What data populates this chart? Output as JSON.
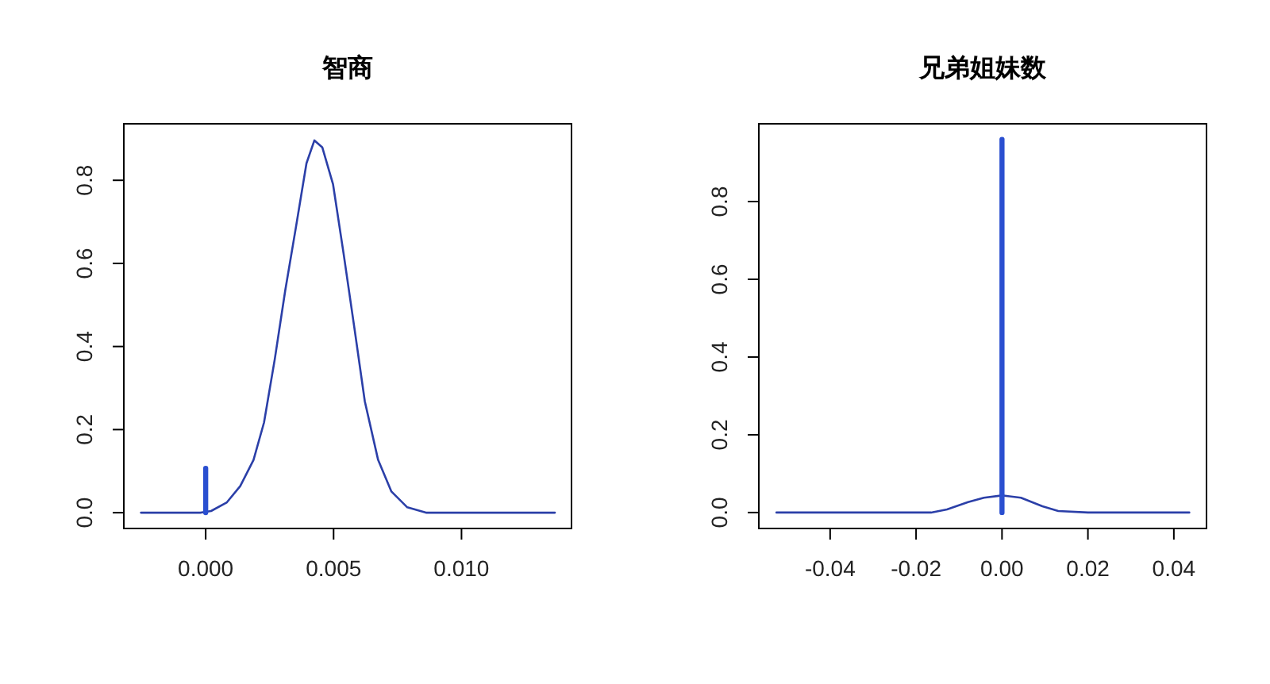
{
  "chart_data": [
    {
      "type": "line",
      "title": "智商",
      "xlim": [
        -0.0032,
        0.0143
      ],
      "ylim": [
        -0.038,
        0.936
      ],
      "xticks": [
        {
          "value": 0,
          "label": "0.000"
        },
        {
          "value": 0.005,
          "label": "0.005"
        },
        {
          "value": 0.01,
          "label": "0.010"
        }
      ],
      "yticks": [
        {
          "value": 0,
          "label": "0.0"
        },
        {
          "value": 0.2,
          "label": "0.2"
        },
        {
          "value": 0.4,
          "label": "0.4"
        },
        {
          "value": 0.6,
          "label": "0.6"
        },
        {
          "value": 0.8,
          "label": "0.8"
        }
      ],
      "grid": false,
      "series": [
        {
          "color": "#2b3fa8",
          "x": [
            -0.00253,
            -0.00021,
            0.00021,
            0.00083,
            0.00135,
            0.00187,
            0.00228,
            0.0027,
            0.00311,
            0.00353,
            0.00394,
            0.00425,
            0.00456,
            0.00498,
            0.00539,
            0.00581,
            0.00622,
            0.00674,
            0.00726,
            0.00788,
            0.00861,
            0.01365
          ],
          "values": [
            0,
            0,
            0.004,
            0.025,
            0.064,
            0.127,
            0.217,
            0.369,
            0.535,
            0.688,
            0.841,
            0.896,
            0.879,
            0.79,
            0.624,
            0.446,
            0.268,
            0.127,
            0.051,
            0.013,
            0,
            0
          ]
        },
        {
          "color": "#2a4fd0",
          "x": [
            0,
            0
          ],
          "values": [
            0,
            0.107
          ]
        }
      ]
    },
    {
      "type": "line",
      "title": "兄弟姐妹数",
      "xlim": [
        -0.0566,
        0.0476
      ],
      "ylim": [
        -0.041,
        1.0
      ],
      "xticks": [
        {
          "value": -0.04,
          "label": "-0.04"
        },
        {
          "value": -0.02,
          "label": "-0.02"
        },
        {
          "value": 0,
          "label": "0.00"
        },
        {
          "value": 0.02,
          "label": "0.02"
        },
        {
          "value": 0.04,
          "label": "0.04"
        }
      ],
      "yticks": [
        {
          "value": 0,
          "label": "0.0"
        },
        {
          "value": 0.2,
          "label": "0.2"
        },
        {
          "value": 0.4,
          "label": "0.4"
        },
        {
          "value": 0.6,
          "label": "0.6"
        },
        {
          "value": 0.8,
          "label": "0.8"
        }
      ],
      "grid": false,
      "series": [
        {
          "color": "#2b3fa8",
          "x": [
            -0.0525,
            -0.0165,
            -0.0128,
            -0.0079,
            -0.0042,
            0,
            0.0044,
            0.0094,
            0.0131,
            0.02,
            0.0436
          ],
          "values": [
            0,
            0,
            0.008,
            0.027,
            0.038,
            0.044,
            0.038,
            0.016,
            0.004,
            0,
            0
          ]
        },
        {
          "color": "#2a4fd0",
          "x": [
            0,
            0
          ],
          "values": [
            0,
            0.96
          ]
        }
      ]
    }
  ]
}
